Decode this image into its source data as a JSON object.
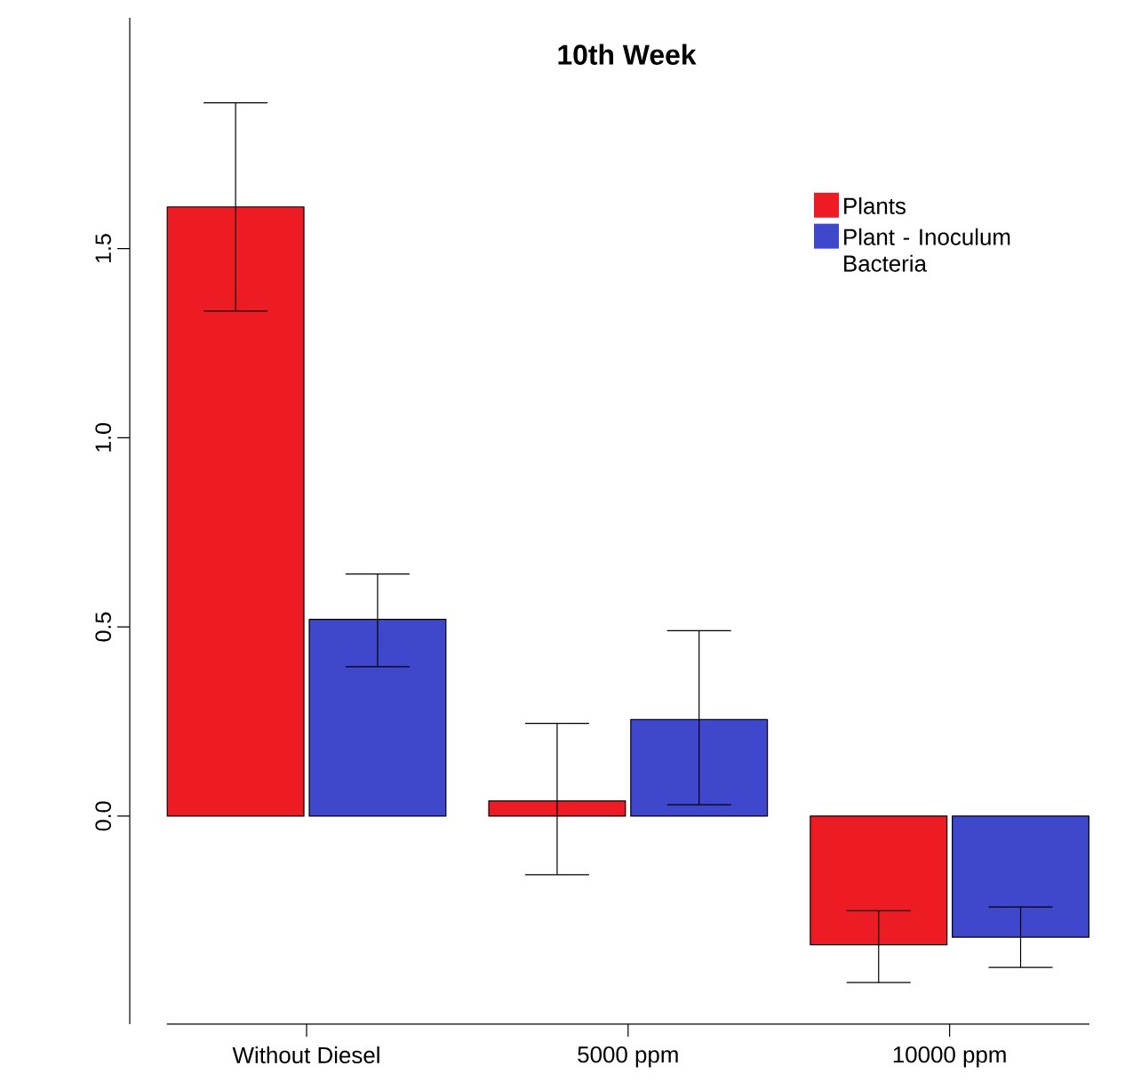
{
  "chart_data": {
    "type": "bar",
    "title": "10th Week",
    "categories": [
      "Without Diesel",
      "5000 ppm",
      "10000 ppm"
    ],
    "series": [
      {
        "name": "Plants",
        "color": "#ed1c24",
        "values": [
          1.61,
          0.04,
          -0.34
        ],
        "errors": [
          [
            1.335,
            1.885
          ],
          [
            -0.155,
            0.245
          ],
          [
            -0.44,
            -0.25
          ]
        ]
      },
      {
        "name": "Plant - Inoculum Bacteria",
        "color": "#3f48cc",
        "values": [
          0.52,
          0.255,
          -0.32
        ],
        "errors": [
          [
            0.395,
            0.64
          ],
          [
            0.03,
            0.49
          ],
          [
            -0.4,
            -0.24
          ]
        ]
      }
    ],
    "ylim": [
      -0.55,
      2.11
    ],
    "yticks": [
      {
        "value": 0,
        "label": "0.0"
      },
      {
        "value": 0.5,
        "label": "0.5"
      },
      {
        "value": 1,
        "label": "1.0"
      },
      {
        "value": 1.5,
        "label": "1.5"
      }
    ],
    "grid": false,
    "legend": "top right"
  }
}
